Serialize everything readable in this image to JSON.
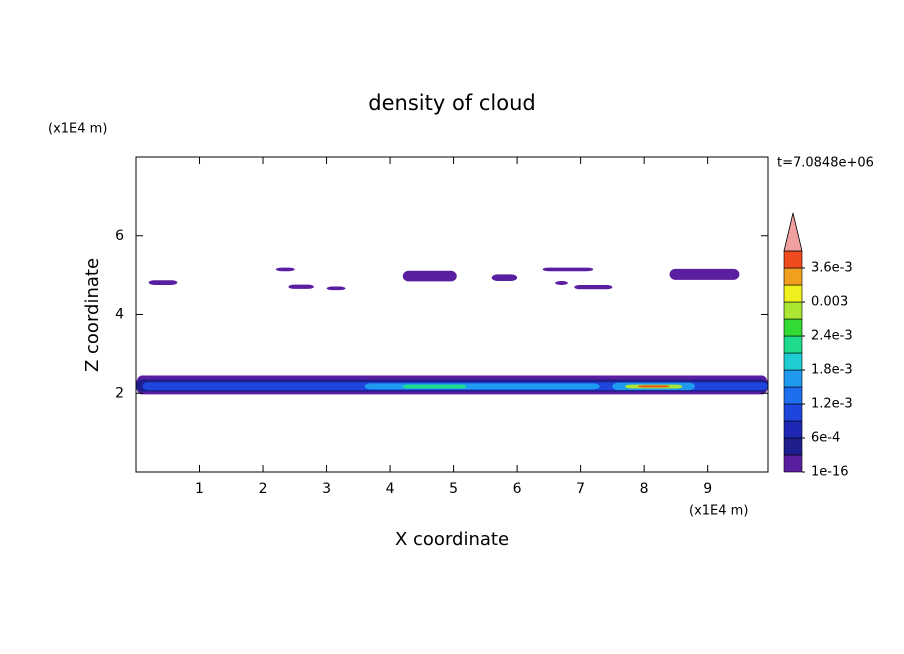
{
  "chart_data": {
    "type": "contour",
    "title": "density of cloud",
    "x_label": "X coordinate",
    "y_label": "Z coordinate",
    "x_unit": "(x1E4 m)",
    "y_unit": "(x1E4 m)",
    "time_label": "t=7.0848e+06",
    "xlim": [
      0,
      9.95
    ],
    "ylim": [
      0,
      8
    ],
    "xticks": [
      1,
      2,
      3,
      4,
      5,
      6,
      7,
      8,
      9
    ],
    "yticks": [
      2,
      4,
      6
    ],
    "colorbar": {
      "colors": [
        "#5a1ea0",
        "#1e1e8c",
        "#1e28b4",
        "#1e46dc",
        "#1e6eee",
        "#1e9af0",
        "#1ecdd2",
        "#1edc8c",
        "#32dc32",
        "#aae632",
        "#f0f01e",
        "#f0a01e",
        "#f04b1e"
      ],
      "extend_color": "#f0a0a0",
      "ticks": [
        {
          "value": 1e-16,
          "label": "1e-16"
        },
        {
          "value": 0.0006,
          "label": "6e-4"
        },
        {
          "value": 0.0012,
          "label": "1.2e-3"
        },
        {
          "value": 0.0018,
          "label": "1.8e-3"
        },
        {
          "value": 0.0024,
          "label": "2.4e-3"
        },
        {
          "value": 0.003,
          "label": "0.003"
        },
        {
          "value": 0.0036,
          "label": "3.6e-3"
        }
      ]
    },
    "patches": [
      {
        "x": [
          0.2,
          0.65
        ],
        "z": [
          4.75,
          4.87
        ],
        "value": 0.0001
      },
      {
        "x": [
          2.2,
          2.5
        ],
        "z": [
          5.1,
          5.19
        ],
        "value": 0.0001
      },
      {
        "x": [
          2.4,
          2.8
        ],
        "z": [
          4.65,
          4.76
        ],
        "value": 0.0001
      },
      {
        "x": [
          3.0,
          3.3
        ],
        "z": [
          4.62,
          4.71
        ],
        "value": 0.0001
      },
      {
        "x": [
          4.2,
          5.05
        ],
        "z": [
          4.84,
          5.11
        ],
        "value": 0.0001
      },
      {
        "x": [
          5.6,
          6.0
        ],
        "z": [
          4.85,
          5.02
        ],
        "value": 0.0001
      },
      {
        "x": [
          6.4,
          7.2
        ],
        "z": [
          5.1,
          5.19
        ],
        "value": 0.0001
      },
      {
        "x": [
          6.6,
          6.8
        ],
        "z": [
          4.75,
          4.85
        ],
        "value": 0.0001
      },
      {
        "x": [
          6.9,
          7.5
        ],
        "z": [
          4.64,
          4.75
        ],
        "value": 0.0001
      },
      {
        "x": [
          8.4,
          9.5
        ],
        "z": [
          4.88,
          5.16
        ],
        "value": 0.0001
      },
      {
        "x": [
          0.0,
          9.95
        ],
        "z": [
          1.97,
          2.45
        ],
        "value": 0.0001
      },
      {
        "x": [
          0.0,
          9.95
        ],
        "z": [
          2.04,
          2.35
        ],
        "value": 0.0004
      },
      {
        "x": [
          0.1,
          9.95
        ],
        "z": [
          2.08,
          2.28
        ],
        "value": 0.0009
      },
      {
        "x": [
          3.6,
          7.3
        ],
        "z": [
          2.1,
          2.25
        ],
        "value": 0.0015
      },
      {
        "x": [
          4.2,
          5.2
        ],
        "z": [
          2.12,
          2.22
        ],
        "value": 0.0021
      },
      {
        "x": [
          7.5,
          8.8
        ],
        "z": [
          2.08,
          2.27
        ],
        "value": 0.0015
      },
      {
        "x": [
          7.7,
          8.6
        ],
        "z": [
          2.12,
          2.22
        ],
        "value": 0.0027
      },
      {
        "x": [
          7.9,
          8.4
        ],
        "z": [
          2.15,
          2.2
        ],
        "value": 0.0038
      }
    ]
  }
}
